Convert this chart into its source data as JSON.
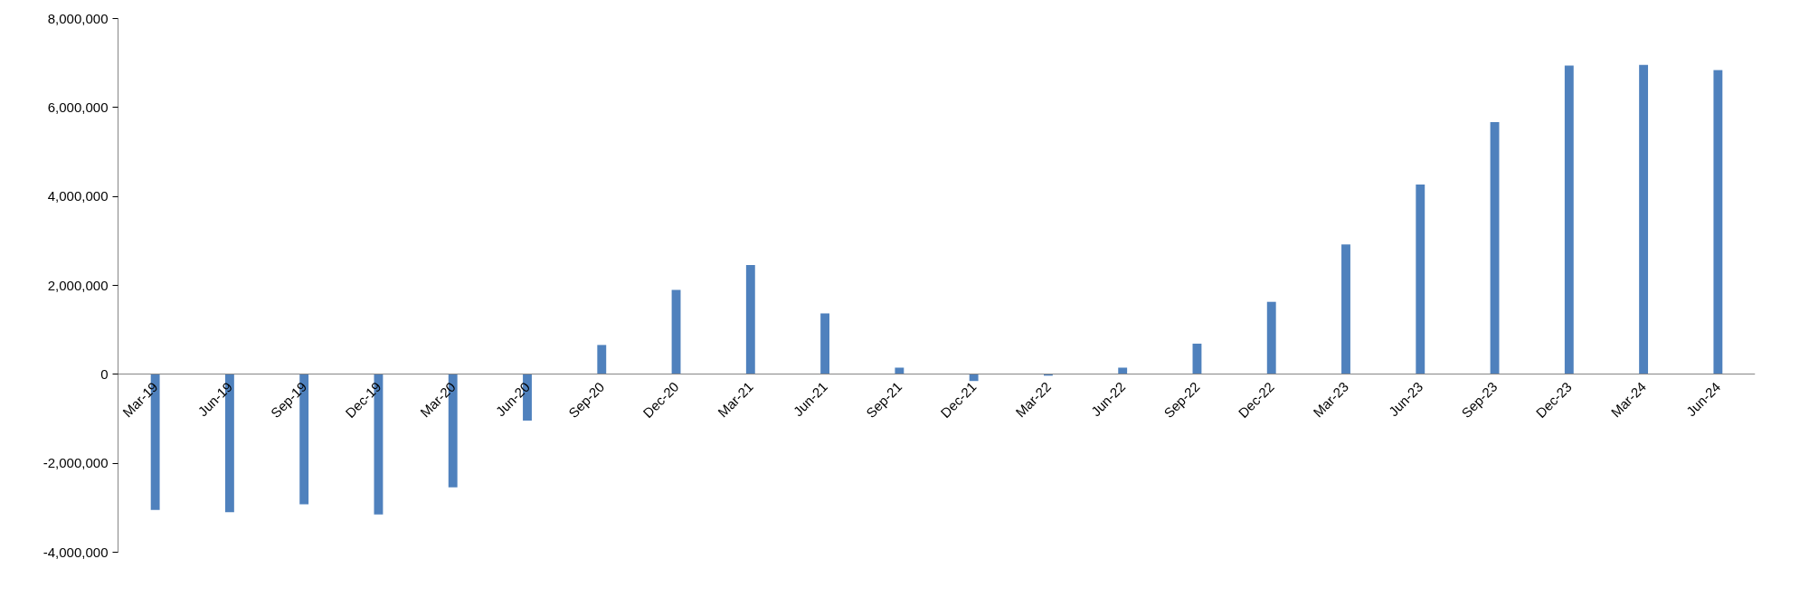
{
  "chart_data": {
    "type": "bar",
    "categories": [
      "Mar-19",
      "Jun-19",
      "Sep-19",
      "Dec-19",
      "Mar-20",
      "Jun-20",
      "Sep-20",
      "Dec-20",
      "Mar-21",
      "Jun-21",
      "Sep-21",
      "Dec-21",
      "Mar-22",
      "Jun-22",
      "Sep-22",
      "Dec-22",
      "Mar-23",
      "Jun-23",
      "Sep-23",
      "Dec-23",
      "Mar-24",
      "Jun-24"
    ],
    "values": [
      -3050000,
      -3100000,
      -2920000,
      -3150000,
      -2540000,
      -1040000,
      660000,
      1900000,
      2460000,
      1370000,
      150000,
      -150000,
      -30000,
      150000,
      690000,
      1630000,
      2920000,
      4270000,
      5670000,
      6940000,
      6960000,
      6840000
    ],
    "color": "#4f81bd",
    "ylim": [
      -4000000,
      8000000
    ],
    "yticks": [
      {
        "value": -4000000,
        "label": "-4,000,000"
      },
      {
        "value": -2000000,
        "label": "-2,000,000"
      },
      {
        "value": 0,
        "label": "0"
      },
      {
        "value": 2000000,
        "label": "2,000,000"
      },
      {
        "value": 4000000,
        "label": "4,000,000"
      },
      {
        "value": 6000000,
        "label": "6,000,000"
      },
      {
        "value": 8000000,
        "label": "8,000,000"
      }
    ],
    "grid": false
  }
}
